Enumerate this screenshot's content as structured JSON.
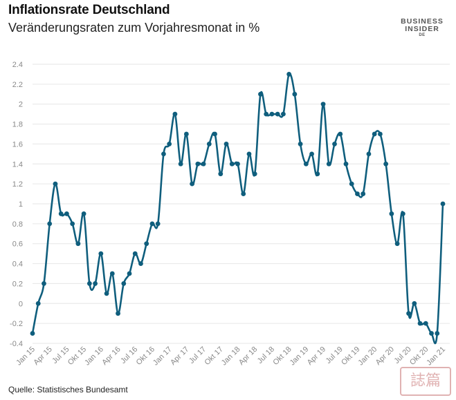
{
  "header": {
    "title": "Inflationsrate Deutschland",
    "subtitle": "Veränderungsraten zum Vorjahresmonat in %"
  },
  "logo": {
    "line1": "BUSINESS",
    "line2": "INSIDER",
    "line3": "DE"
  },
  "footer": {
    "source": "Quelle: Statistisches Bundesamt"
  },
  "watermark": "誌篇",
  "colors": {
    "line": "#0f5e7d",
    "grid": "#e6e6e6",
    "tick_text": "#888888"
  },
  "chart_data": {
    "type": "line",
    "title": "Inflationsrate Deutschland",
    "subtitle": "Veränderungsraten zum Vorjahresmonat in %",
    "ylim": [
      -0.4,
      2.4
    ],
    "yticks": [
      "-0.4",
      "-0.2",
      "0",
      "0.2",
      "0.4",
      "0.6",
      "0.8",
      "1",
      "1.2",
      "1.4",
      "1.6",
      "1.8",
      "2",
      "2.2",
      "2.4"
    ],
    "x_tick_labels": [
      "Jan 15",
      "Apr 15",
      "Jul 15",
      "Okt 15",
      "Jan 16",
      "Apr 16",
      "Jul 16",
      "Okt 16",
      "Jan 17",
      "Apr 17",
      "Jul 17",
      "Okt 17",
      "Jan 18",
      "Apr 18",
      "Jul 18",
      "Okt 18",
      "Jan 19",
      "Apr 19",
      "Jul 19",
      "Okt 19",
      "Jan 20",
      "Apr 20",
      "Jul 20",
      "Okt 20",
      "Jan 21"
    ],
    "x_tick_every": 3,
    "grid": true,
    "legend": "none",
    "series": [
      {
        "values": [
          -0.3,
          0.0,
          0.2,
          0.8,
          1.2,
          0.9,
          0.9,
          0.8,
          0.6,
          0.9,
          0.2,
          0.2,
          0.5,
          0.1,
          0.3,
          -0.1,
          0.2,
          0.3,
          0.5,
          0.4,
          0.6,
          0.8,
          0.8,
          1.5,
          1.6,
          1.9,
          1.4,
          1.7,
          1.2,
          1.4,
          1.4,
          1.6,
          1.7,
          1.3,
          1.6,
          1.4,
          1.4,
          1.1,
          1.5,
          1.3,
          2.1,
          1.9,
          1.9,
          1.9,
          1.9,
          2.3,
          2.1,
          1.6,
          1.4,
          1.5,
          1.3,
          2.0,
          1.4,
          1.6,
          1.7,
          1.4,
          1.2,
          1.1,
          1.1,
          1.5,
          1.7,
          1.7,
          1.4,
          0.9,
          0.6,
          0.9,
          -0.1,
          0.0,
          -0.2,
          -0.2,
          -0.3,
          -0.3,
          1.0
        ]
      }
    ]
  }
}
